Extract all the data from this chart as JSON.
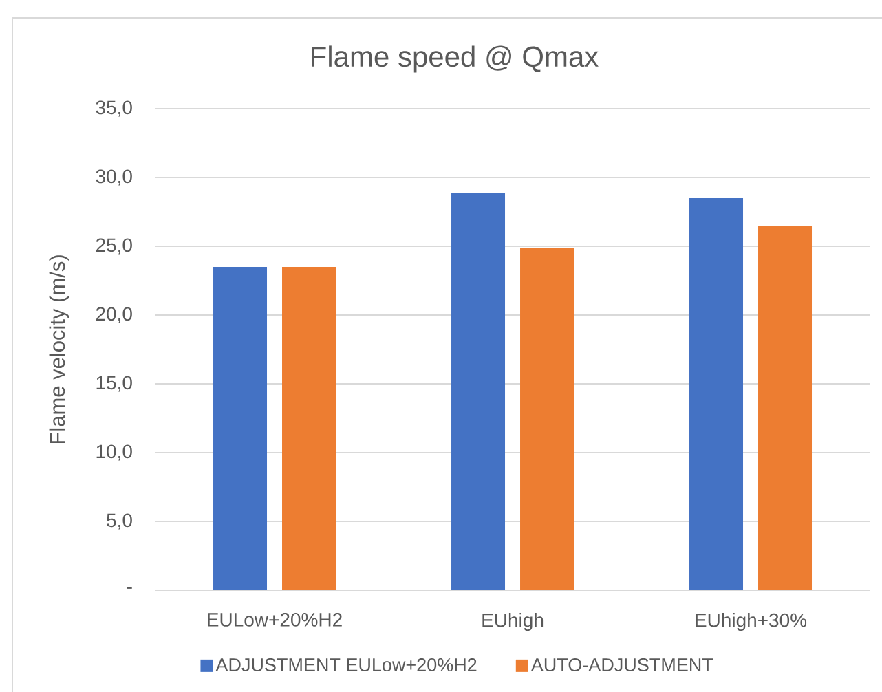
{
  "chart_data": {
    "type": "bar",
    "title": "Flame speed @ Qmax",
    "ylabel": "Flame velocity (m/s)",
    "categories": [
      "EULow+20%H2",
      "EUhigh",
      "EUhigh+30%"
    ],
    "series": [
      {
        "name": "ADJUSTMENT EULow+20%H2",
        "color": "#4472c4",
        "values": [
          23.5,
          28.9,
          28.5
        ]
      },
      {
        "name": "AUTO-ADJUSTMENT",
        "color": "#ed7d31",
        "values": [
          23.5,
          24.9,
          26.5
        ]
      }
    ],
    "ylim": [
      0,
      35
    ],
    "yticks": [
      {
        "value": 0,
        "label": "-"
      },
      {
        "value": 5,
        "label": "5,0"
      },
      {
        "value": 10,
        "label": "10,0"
      },
      {
        "value": 15,
        "label": "15,0"
      },
      {
        "value": 20,
        "label": "20,0"
      },
      {
        "value": 25,
        "label": "25,0"
      },
      {
        "value": 30,
        "label": "30,0"
      },
      {
        "value": 35,
        "label": "35,0"
      }
    ],
    "grid": "y",
    "legend": "bottom"
  }
}
